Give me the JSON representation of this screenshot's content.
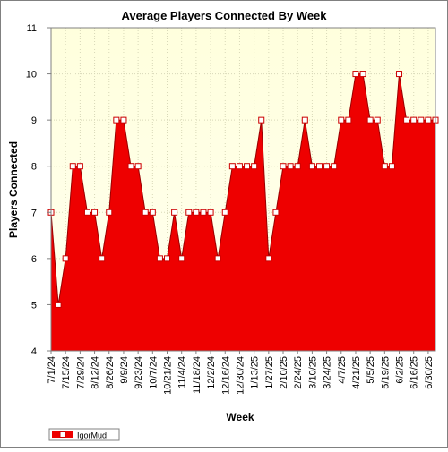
{
  "colors": {
    "frame": "#808080",
    "plot_bg_top": "#ffffdd",
    "plot_bg_bottom": "#fffff0",
    "area_fill": "#ee0000",
    "area_stroke": "#990000",
    "marker_fill": "#ffffff",
    "marker_stroke": "#cc0000",
    "grid": "#d8d8b8",
    "text": "#000000"
  },
  "chart_data": {
    "type": "area",
    "title": "Average Players Connected By Week",
    "xlabel": "Week",
    "ylabel": "Players Connected",
    "ylim": [
      4,
      11
    ],
    "yticks": [
      4,
      5,
      6,
      7,
      8,
      9,
      10,
      11
    ],
    "grid": true,
    "legend": "bottom-left",
    "x": [
      "7/1/24",
      "7/8/24",
      "7/15/24",
      "7/22/24",
      "7/29/24",
      "8/5/24",
      "8/12/24",
      "8/19/24",
      "8/26/24",
      "9/2/24",
      "9/9/24",
      "9/16/24",
      "9/23/24",
      "9/30/24",
      "10/7/24",
      "10/14/24",
      "10/21/24",
      "10/28/24",
      "11/4/24",
      "11/11/24",
      "11/18/24",
      "11/25/24",
      "12/2/24",
      "12/9/24",
      "12/16/24",
      "12/23/24",
      "12/30/24",
      "1/6/25",
      "1/13/25",
      "1/20/25",
      "1/27/25",
      "2/3/25",
      "2/10/25",
      "2/17/25",
      "2/24/25",
      "3/3/25",
      "3/10/25",
      "3/17/25",
      "3/24/25",
      "3/31/25",
      "4/7/25",
      "4/14/25",
      "4/21/25",
      "4/28/25",
      "5/5/25",
      "5/12/25",
      "5/19/25",
      "5/26/25",
      "6/2/25",
      "6/9/25",
      "6/16/25",
      "6/23/25",
      "6/30/25",
      "7/7/25"
    ],
    "tick_labels": [
      "7/1/24",
      "7/15/24",
      "7/29/24",
      "8/12/24",
      "8/26/24",
      "9/9/24",
      "9/23/24",
      "10/7/24",
      "10/21/24",
      "11/4/24",
      "11/18/24",
      "12/2/24",
      "12/16/24",
      "12/30/24",
      "1/13/25",
      "1/27/25",
      "2/10/25",
      "2/24/25",
      "3/10/25",
      "3/24/25",
      "4/7/25",
      "4/21/25",
      "5/5/25",
      "5/19/25",
      "6/2/25",
      "6/16/25",
      "6/30/25"
    ],
    "series": [
      {
        "name": "IgorMud",
        "values": [
          7,
          5,
          6,
          8,
          8,
          7,
          7,
          6,
          7,
          9,
          9,
          8,
          8,
          7,
          7,
          6,
          6,
          7,
          6,
          7,
          7,
          7,
          7,
          6,
          7,
          8,
          8,
          8,
          8,
          9,
          6,
          7,
          8,
          8,
          8,
          9,
          8,
          8,
          8,
          8,
          9,
          9,
          10,
          10,
          9,
          9,
          8,
          8,
          10,
          9,
          9,
          9,
          9,
          9
        ]
      }
    ]
  }
}
